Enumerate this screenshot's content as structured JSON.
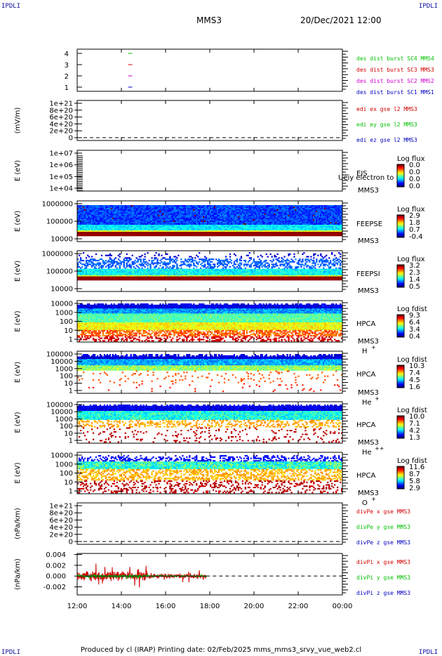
{
  "corner_label": "IPDLI",
  "header": {
    "spacecraft": "MMS3",
    "datetime": "20/Dec/2021 12:00"
  },
  "footer": {
    "text": "Produced by cl (IRAP)   Printing date: 02/Feb/2025   mms_mms3_srvy_vue_web2.cl"
  },
  "x_axis": {
    "ticks": [
      "12:00",
      "14:00",
      "16:00",
      "18:00",
      "20:00",
      "22:00",
      "00:00"
    ],
    "range_hours": [
      12,
      24
    ]
  },
  "colors": {
    "blue": "#0000c0",
    "magenta": "#d000d0",
    "red": "#d00000",
    "green": "#00c000"
  },
  "chart_data": [
    {
      "type": "scatter",
      "panel": "availability",
      "y_ticks": [
        "4",
        "3",
        "2",
        "1"
      ],
      "y_values": [
        4,
        3,
        2,
        1
      ],
      "ylim": [
        0.5,
        4.5
      ],
      "series": [
        {
          "name": "des dist burst SC1 MMS1",
          "y": 1,
          "x_hours": [
            14.4
          ],
          "color": "#0000c0"
        },
        {
          "name": "des dist burst SC2 MMS2",
          "y": 2,
          "x_hours": [
            14.4
          ],
          "color": "#d000d0"
        },
        {
          "name": "des dist burst SC3 MMS3",
          "y": 3,
          "x_hours": [
            14.4
          ],
          "color": "#d00000"
        },
        {
          "name": "des dist burst SC4 MMS4",
          "y": 4,
          "x_hours": [
            14.4
          ],
          "color": "#00c000"
        }
      ]
    },
    {
      "type": "line",
      "panel": "edi-e",
      "ylabel": "(mV/m)",
      "y_ticks": [
        "1e+21",
        "8e+20",
        "6e+20",
        "4e+20",
        "2e+20",
        "0"
      ],
      "y_values": [
        1e+21,
        8e+20,
        6e+20,
        4e+20,
        2e+20,
        0
      ],
      "ylim": [
        -2e+20,
        1.1e+21
      ],
      "series": [
        {
          "name": "edi ex gse l2 MMS3",
          "color": "#d00000"
        },
        {
          "name": "edi ey gse l2 MMS3",
          "color": "#00c000"
        },
        {
          "name": "edi ez gse l2 MMS3",
          "color": "#0000c0"
        }
      ]
    },
    {
      "type": "heatmap",
      "panel": "eis",
      "ylabel": "E (eV)",
      "y_ticks": [
        "1e+07",
        "1e+06",
        "1e+05",
        "1e+04"
      ],
      "label1": "EIS",
      "label2": "MMS3",
      "overlay": "Ueiy electron to",
      "cbar_title": "Log flux",
      "cbar_ticks": [
        "0.0",
        "0.0",
        "0.0",
        "0.0"
      ]
    },
    {
      "type": "heatmap",
      "panel": "feepse",
      "ylabel": "E (eV)",
      "y_ticks": [
        "1000000",
        "100000",
        "10000"
      ],
      "label1": "FEEPSE",
      "label2": "MMS3",
      "cbar_title": "Log flux",
      "cbar_ticks": [
        "2.9",
        "1.8",
        "0.7",
        "-0.4"
      ]
    },
    {
      "type": "heatmap",
      "panel": "feepsi",
      "ylabel": "E (eV)",
      "y_ticks": [
        "1000000",
        "100000",
        "10000"
      ],
      "label1": "FEEPSI",
      "label2": "MMS3",
      "cbar_title": "Log flux",
      "cbar_ticks": [
        "3.2",
        "2.3",
        "1.4",
        "0.5"
      ]
    },
    {
      "type": "heatmap",
      "panel": "hpca-h",
      "ylabel": "E (eV)",
      "y_ticks": [
        "10000",
        "1000",
        "100",
        "10",
        "1"
      ],
      "label1": "HPCA",
      "label2": "MMS3",
      "species": "H",
      "charge": "+",
      "cbar_title": "Log fdist",
      "cbar_ticks": [
        "9.3",
        "6.4",
        "3.4",
        "0.4"
      ]
    },
    {
      "type": "heatmap",
      "panel": "hpca-he",
      "ylabel": "E (eV)",
      "y_ticks": [
        "100000",
        "10000",
        "1000",
        "100",
        "10",
        "1"
      ],
      "label1": "HPCA",
      "label2": "MMS3",
      "species": "He",
      "charge": "+",
      "cbar_title": "Log fdist",
      "cbar_ticks": [
        "10.3",
        "7.4",
        "4.5",
        "1.6"
      ]
    },
    {
      "type": "heatmap",
      "panel": "hpca-he2",
      "ylabel": "E (eV)",
      "y_ticks": [
        "100000",
        "10000",
        "1000",
        "100",
        "10",
        "1"
      ],
      "label1": "HPCA",
      "label2": "MMS3",
      "species": "He",
      "charge": "++",
      "cbar_title": "Log fdist",
      "cbar_ticks": [
        "10.0",
        "7.1",
        "4.2",
        "1.3"
      ]
    },
    {
      "type": "heatmap",
      "panel": "hpca-o",
      "ylabel": "E (eV)",
      "y_ticks": [
        "10000",
        "1000",
        "100",
        "10",
        "1"
      ],
      "label1": "HPCA",
      "label2": "MMS3",
      "species": "O",
      "charge": "+",
      "cbar_title": "Log fdist",
      "cbar_ticks": [
        "11.6",
        "8.7",
        "5.8",
        "2.9"
      ]
    },
    {
      "type": "line",
      "panel": "divpe",
      "ylabel": "(nPa/km)",
      "y_ticks": [
        "1e+21",
        "8e+20",
        "6e+20",
        "4e+20",
        "2e+20",
        "0"
      ],
      "y_values": [
        1e+21,
        8e+20,
        6e+20,
        4e+20,
        2e+20,
        0
      ],
      "ylim": [
        -2e+20,
        1.1e+21
      ],
      "series": [
        {
          "name": "divPe x gse MMS3",
          "color": "#d00000"
        },
        {
          "name": "divPe y gse MMS3",
          "color": "#00c000"
        },
        {
          "name": "divPe z gse MMS3",
          "color": "#0000c0"
        }
      ]
    },
    {
      "type": "line",
      "panel": "divpi",
      "ylabel": "(nPa/km)",
      "y_ticks": [
        "0.004",
        "0.002",
        "0.000",
        "-0.002"
      ],
      "y_values": [
        0.004,
        0.002,
        0.0,
        -0.002
      ],
      "ylim": [
        -0.0035,
        0.0042
      ],
      "data_end_hour": 17.85,
      "series": [
        {
          "name": "divPi x gse MMS3",
          "color": "#d00000",
          "amplitude": 0.0028
        },
        {
          "name": "divPi y gse MMS3",
          "color": "#00c000",
          "amplitude": 0.0006
        },
        {
          "name": "divPi z gse MMS3",
          "color": "#0000c0",
          "amplitude": 0.0004
        }
      ]
    }
  ]
}
